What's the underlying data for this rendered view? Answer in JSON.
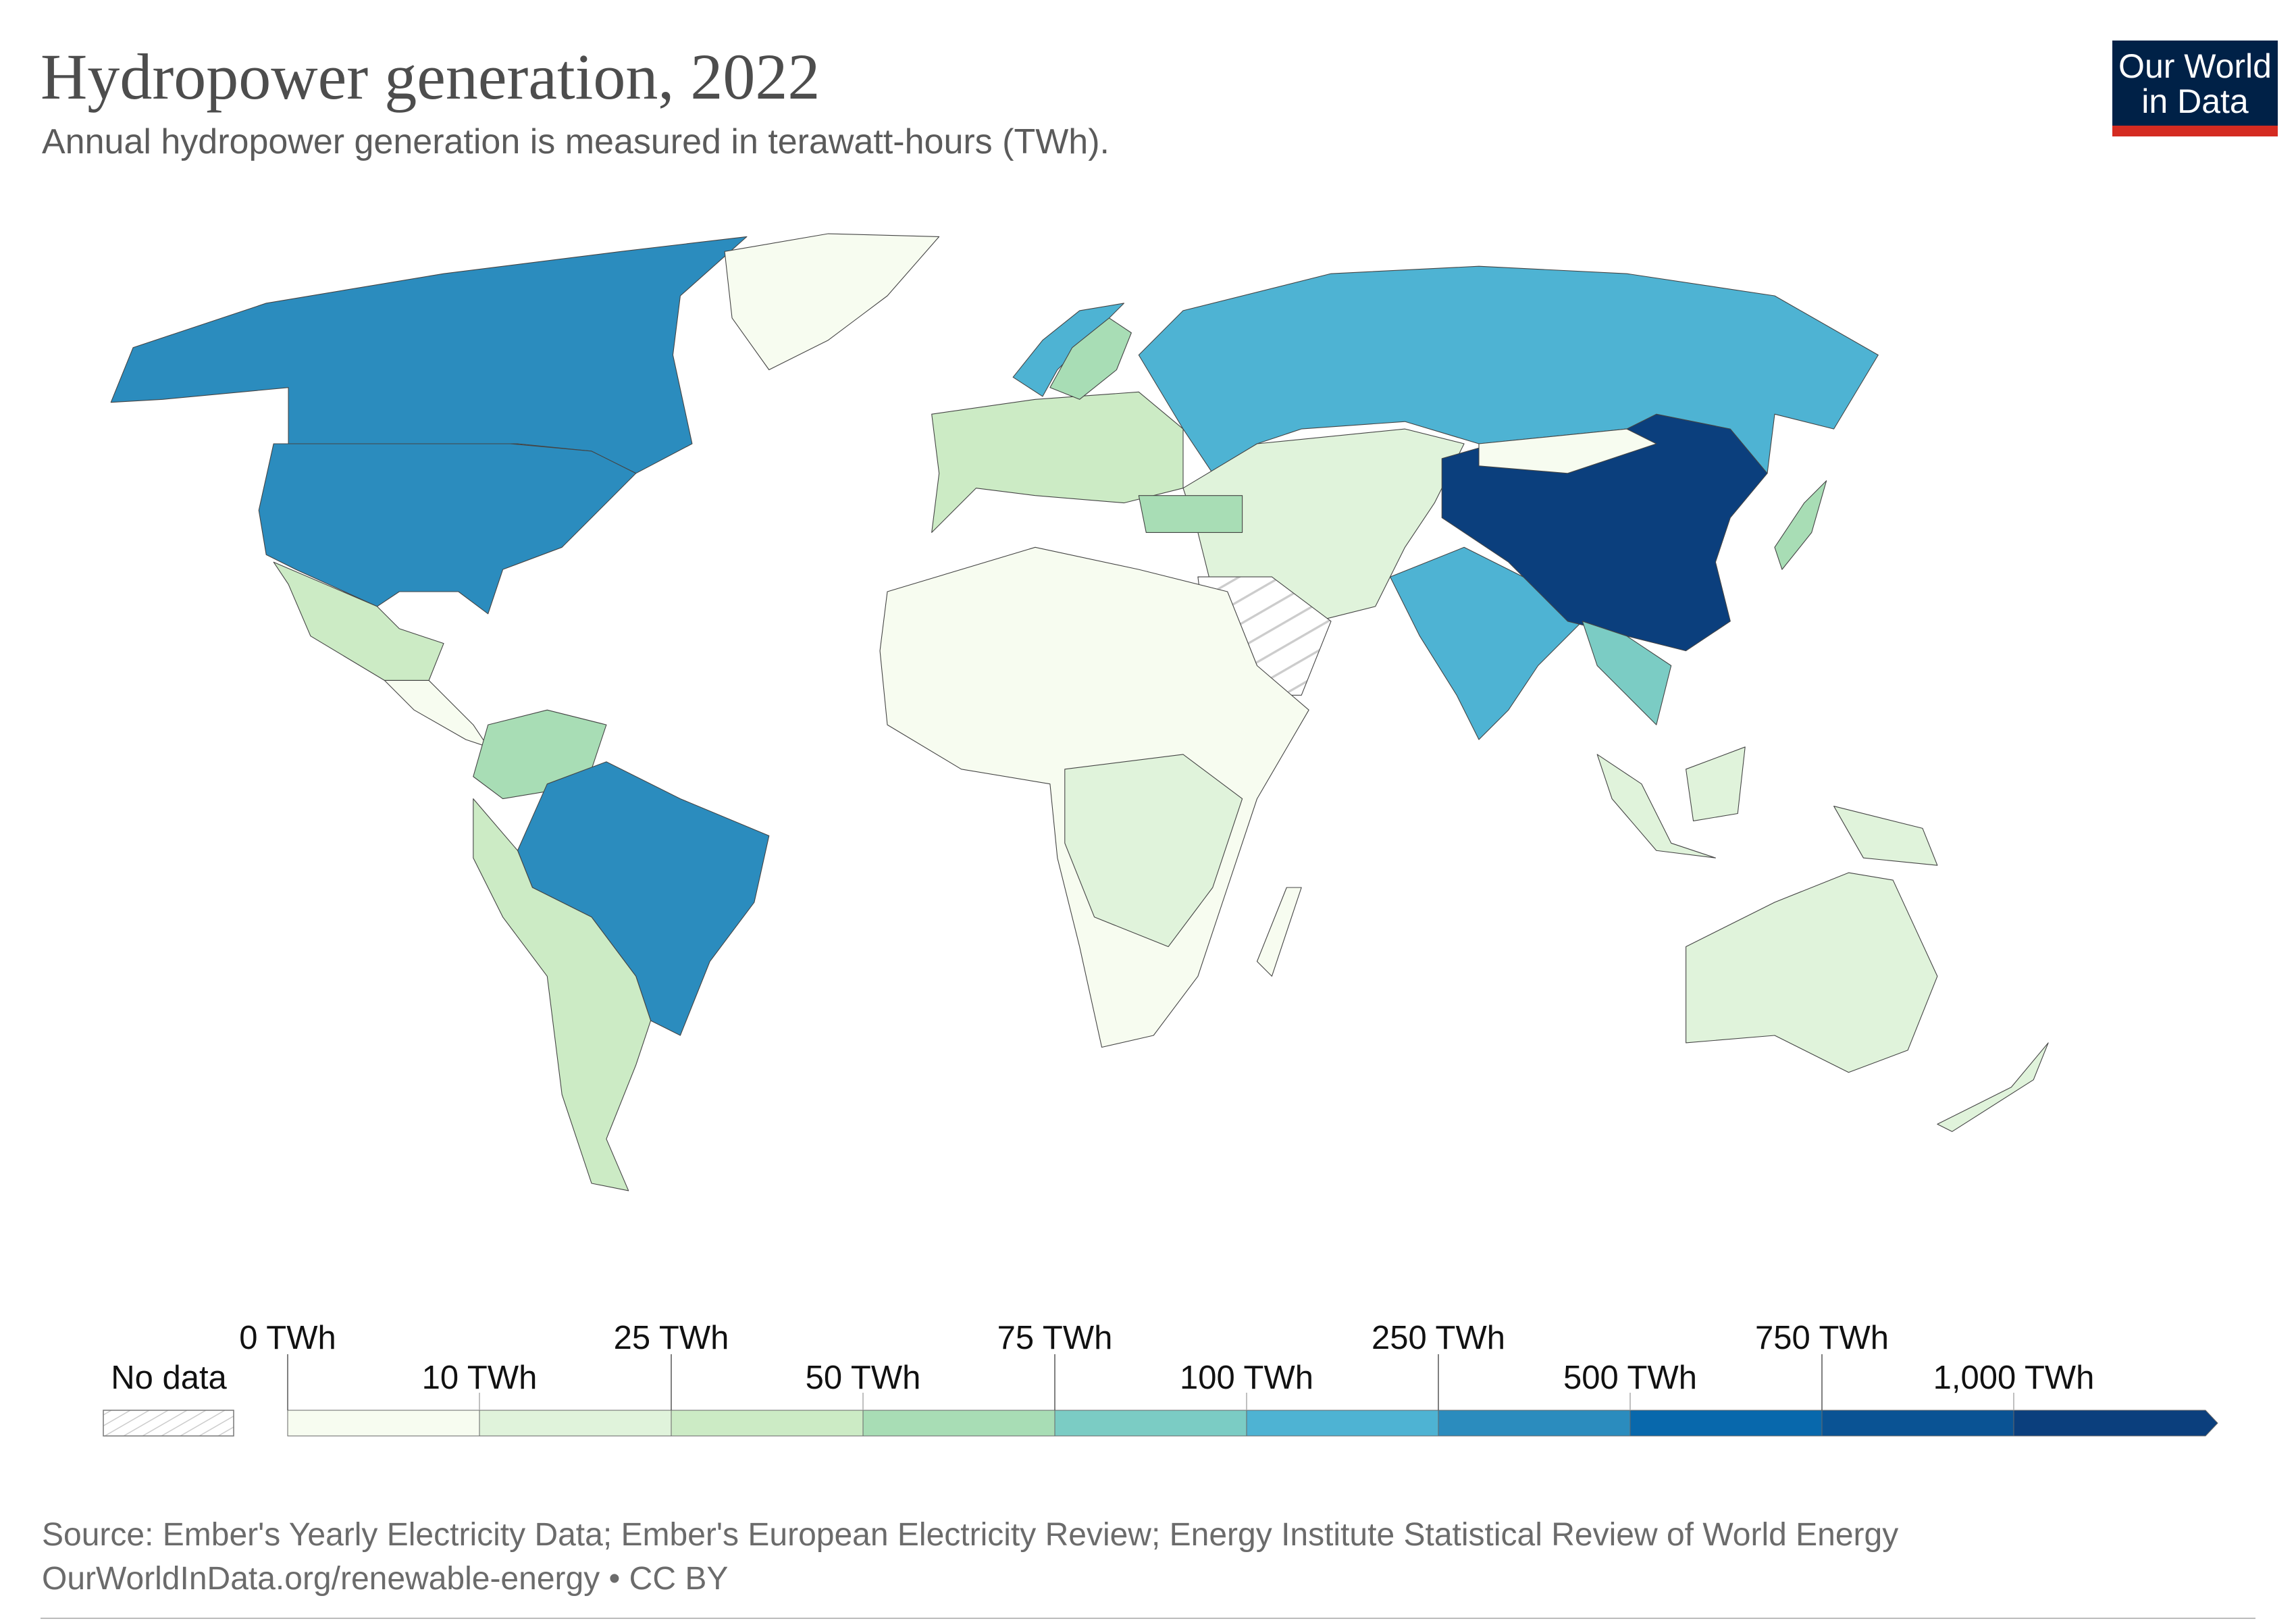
{
  "header": {
    "title": "Hydropower generation, 2022",
    "subtitle": "Annual hydropower generation is measured in terawatt-hours (TWh).",
    "logo_text_line1": "Our World",
    "logo_text_line2": "in Data",
    "logo_colors": {
      "background": "#002147",
      "accent": "#d42b21"
    }
  },
  "legend": {
    "no_data_label": "No data",
    "boundaries": [
      "0 TWh",
      "10 TWh",
      "25 TWh",
      "50 TWh",
      "75 TWh",
      "100 TWh",
      "250 TWh",
      "500 TWh",
      "750 TWh",
      "1,000 TWh"
    ],
    "colors": [
      "#f7fcf0",
      "#e0f3db",
      "#ccebc5",
      "#a8ddb5",
      "#7bccc4",
      "#4eb3d3",
      "#2b8cbe",
      "#0868ac",
      "#0a5394",
      "#0b3f7d"
    ]
  },
  "map": {
    "regions": [
      {
        "name": "Canada",
        "bin": 6
      },
      {
        "name": "United States",
        "bin": 6
      },
      {
        "name": "Greenland",
        "bin": 0
      },
      {
        "name": "Mexico",
        "bin": 2
      },
      {
        "name": "Central America",
        "bin": 0
      },
      {
        "name": "Colombia & Venezuela",
        "bin": 3
      },
      {
        "name": "Brazil",
        "bin": 6
      },
      {
        "name": "Southern South America",
        "bin": 2
      },
      {
        "name": "Europe",
        "bin": 2
      },
      {
        "name": "Norway",
        "bin": 5
      },
      {
        "name": "Sweden",
        "bin": 3
      },
      {
        "name": "Russia",
        "bin": 5
      },
      {
        "name": "Middle East & Central Asia",
        "bin": 1
      },
      {
        "name": "Saudi Arabia",
        "bin": -1
      },
      {
        "name": "Turkey",
        "bin": 3
      },
      {
        "name": "Africa",
        "bin": 0
      },
      {
        "name": "Central Africa",
        "bin": 1
      },
      {
        "name": "Madagascar",
        "bin": 0
      },
      {
        "name": "India",
        "bin": 5
      },
      {
        "name": "China",
        "bin": 9
      },
      {
        "name": "Mongolia",
        "bin": 0
      },
      {
        "name": "Vietnam & Laos",
        "bin": 4
      },
      {
        "name": "Sumatra",
        "bin": 1
      },
      {
        "name": "Borneo",
        "bin": 1
      },
      {
        "name": "New Guinea",
        "bin": 1
      },
      {
        "name": "Japan",
        "bin": 3
      },
      {
        "name": "Australia",
        "bin": 1
      },
      {
        "name": "New Zealand",
        "bin": 1
      }
    ]
  },
  "footer": {
    "source": "Source: Ember's Yearly Electricity Data; Ember's European Electricity Review; Energy Institute Statistical Review of World Energy",
    "url_license": "OurWorldInData.org/renewable-energy • CC BY"
  }
}
